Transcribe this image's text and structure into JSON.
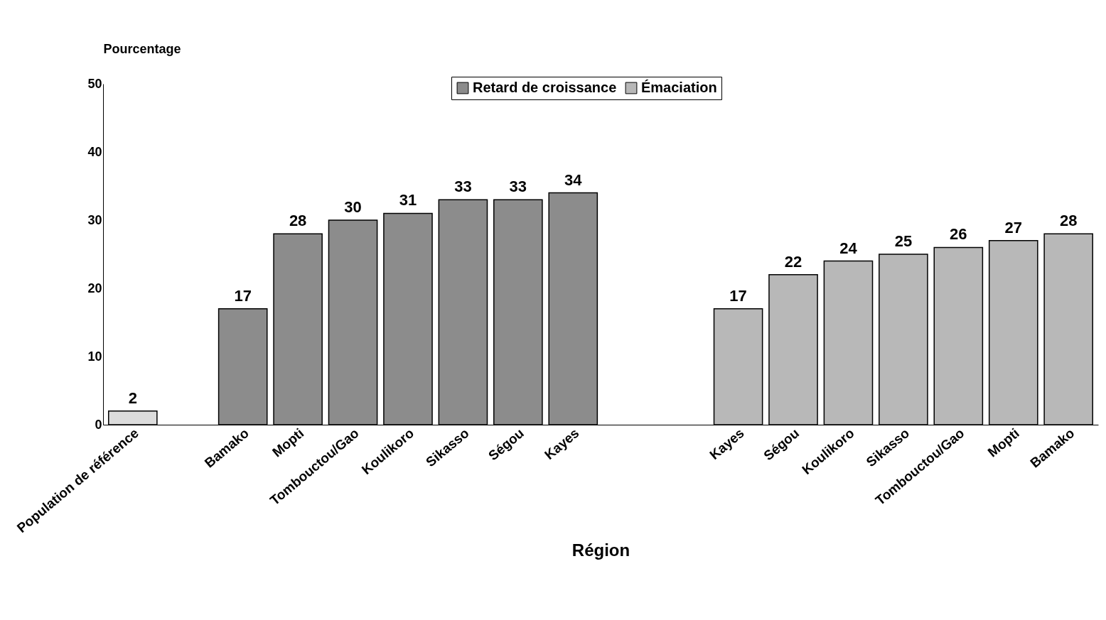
{
  "chart_data": {
    "type": "bar",
    "xlabel": "Région",
    "ylabel": "Pourcentage",
    "categories": [
      "Population de référence",
      null,
      "Bamako",
      "Mopti",
      "Tombouctou/Gao",
      "Koulikoro",
      "Sikasso",
      "Ségou",
      "Kayes",
      null,
      null,
      "Kayes",
      "Ségou",
      "Koulikoro",
      "Sikasso",
      "Tombouctou/Gao",
      "Mopti",
      "Bamako"
    ],
    "series": [
      {
        "color": "#dcdcdc",
        "values": [
          2,
          null,
          null,
          null,
          null,
          null,
          null,
          null,
          null,
          null,
          null,
          null,
          null,
          null,
          null,
          null,
          null,
          null
        ]
      },
      {
        "name": "Retard de croissance",
        "color": "#8c8c8c",
        "values": [
          null,
          null,
          17,
          28,
          30,
          31,
          33,
          33,
          34,
          null,
          null,
          null,
          null,
          null,
          null,
          null,
          null,
          null
        ]
      },
      {
        "name": "Émaciation",
        "color": "#b8b8b8",
        "values": [
          null,
          null,
          null,
          null,
          null,
          null,
          null,
          null,
          null,
          null,
          null,
          17,
          22,
          24,
          25,
          26,
          27,
          28
        ]
      }
    ],
    "ylim": [
      0,
      50
    ],
    "yticks": [
      0,
      10,
      20,
      30,
      40,
      50
    ],
    "grid": false,
    "legend": "top",
    "data_labels": true
  }
}
